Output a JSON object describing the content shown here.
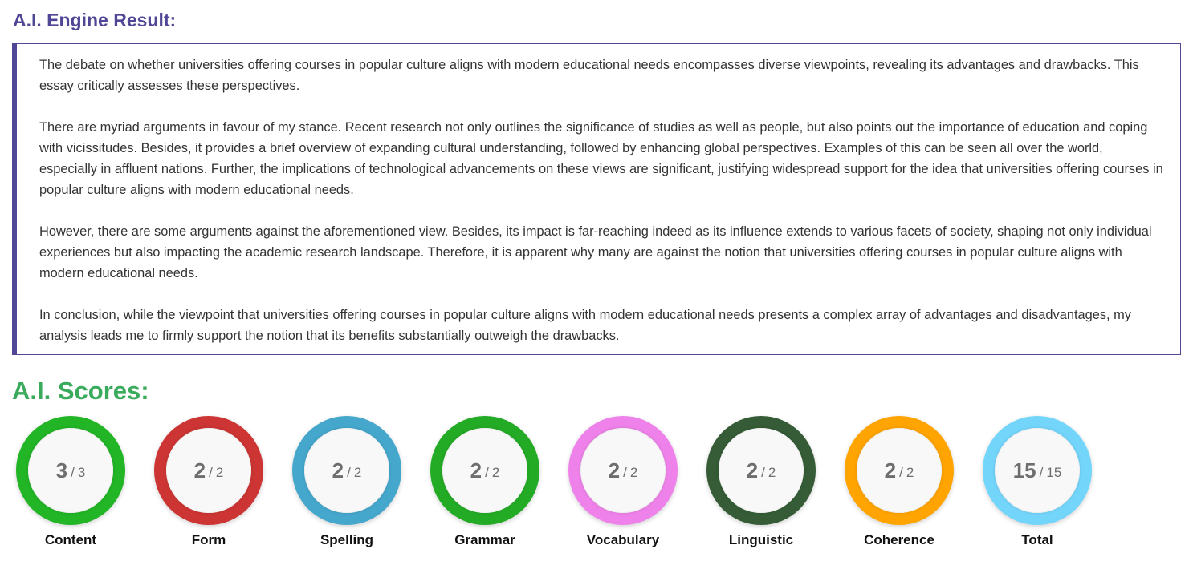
{
  "result": {
    "heading": "A.I. Engine Result:",
    "paragraphs": [
      "The debate on whether universities offering courses in popular culture aligns with modern educational needs encompasses diverse viewpoints, revealing its advantages and drawbacks. This essay critically assesses these perspectives.",
      "There are myriad arguments in favour of my stance. Recent research not only outlines the significance of studies as well as people, but also points out the importance of education and coping with vicissitudes. Besides, it provides a brief overview of expanding cultural understanding, followed by enhancing global perspectives. Examples of this can be seen all over the world, especially in affluent nations. Further, the implications of technological advancements on these views are significant, justifying widespread support for the idea that universities offering courses in popular culture aligns with modern educational needs.",
      "However, there are some arguments against the aforementioned view. Besides, its impact is far-reaching indeed as its influence extends to various facets of society, shaping not only individual experiences but also impacting the academic research landscape. Therefore, it is apparent why many are against the notion that universities offering courses in popular culture aligns with modern educational needs.",
      "In conclusion, while the viewpoint that universities offering courses in popular culture aligns with modern educational needs presents a complex array of advantages and disadvantages, my analysis leads me to firmly support the notion that its benefits substantially outweigh the drawbacks."
    ],
    "accent_color": "#4f4796"
  },
  "scores": {
    "heading": "A.I. Scores:",
    "heading_color": "#3aaa5c",
    "separator": "/",
    "items": [
      {
        "label": "Content",
        "score": "3",
        "max": "3",
        "color": "#22b526"
      },
      {
        "label": "Form",
        "score": "2",
        "max": "2",
        "color": "#cc3533"
      },
      {
        "label": "Spelling",
        "score": "2",
        "max": "2",
        "color": "#45a7cc"
      },
      {
        "label": "Grammar",
        "score": "2",
        "max": "2",
        "color": "#23ab25"
      },
      {
        "label": "Vocabulary",
        "score": "2",
        "max": "2",
        "color": "#ee82ea"
      },
      {
        "label": "Linguistic",
        "score": "2",
        "max": "2",
        "color": "#355c36"
      },
      {
        "label": "Coherence",
        "score": "2",
        "max": "2",
        "color": "#ffa400"
      },
      {
        "label": "Total",
        "score": "15",
        "max": "15",
        "color": "#74d5fb"
      }
    ]
  }
}
